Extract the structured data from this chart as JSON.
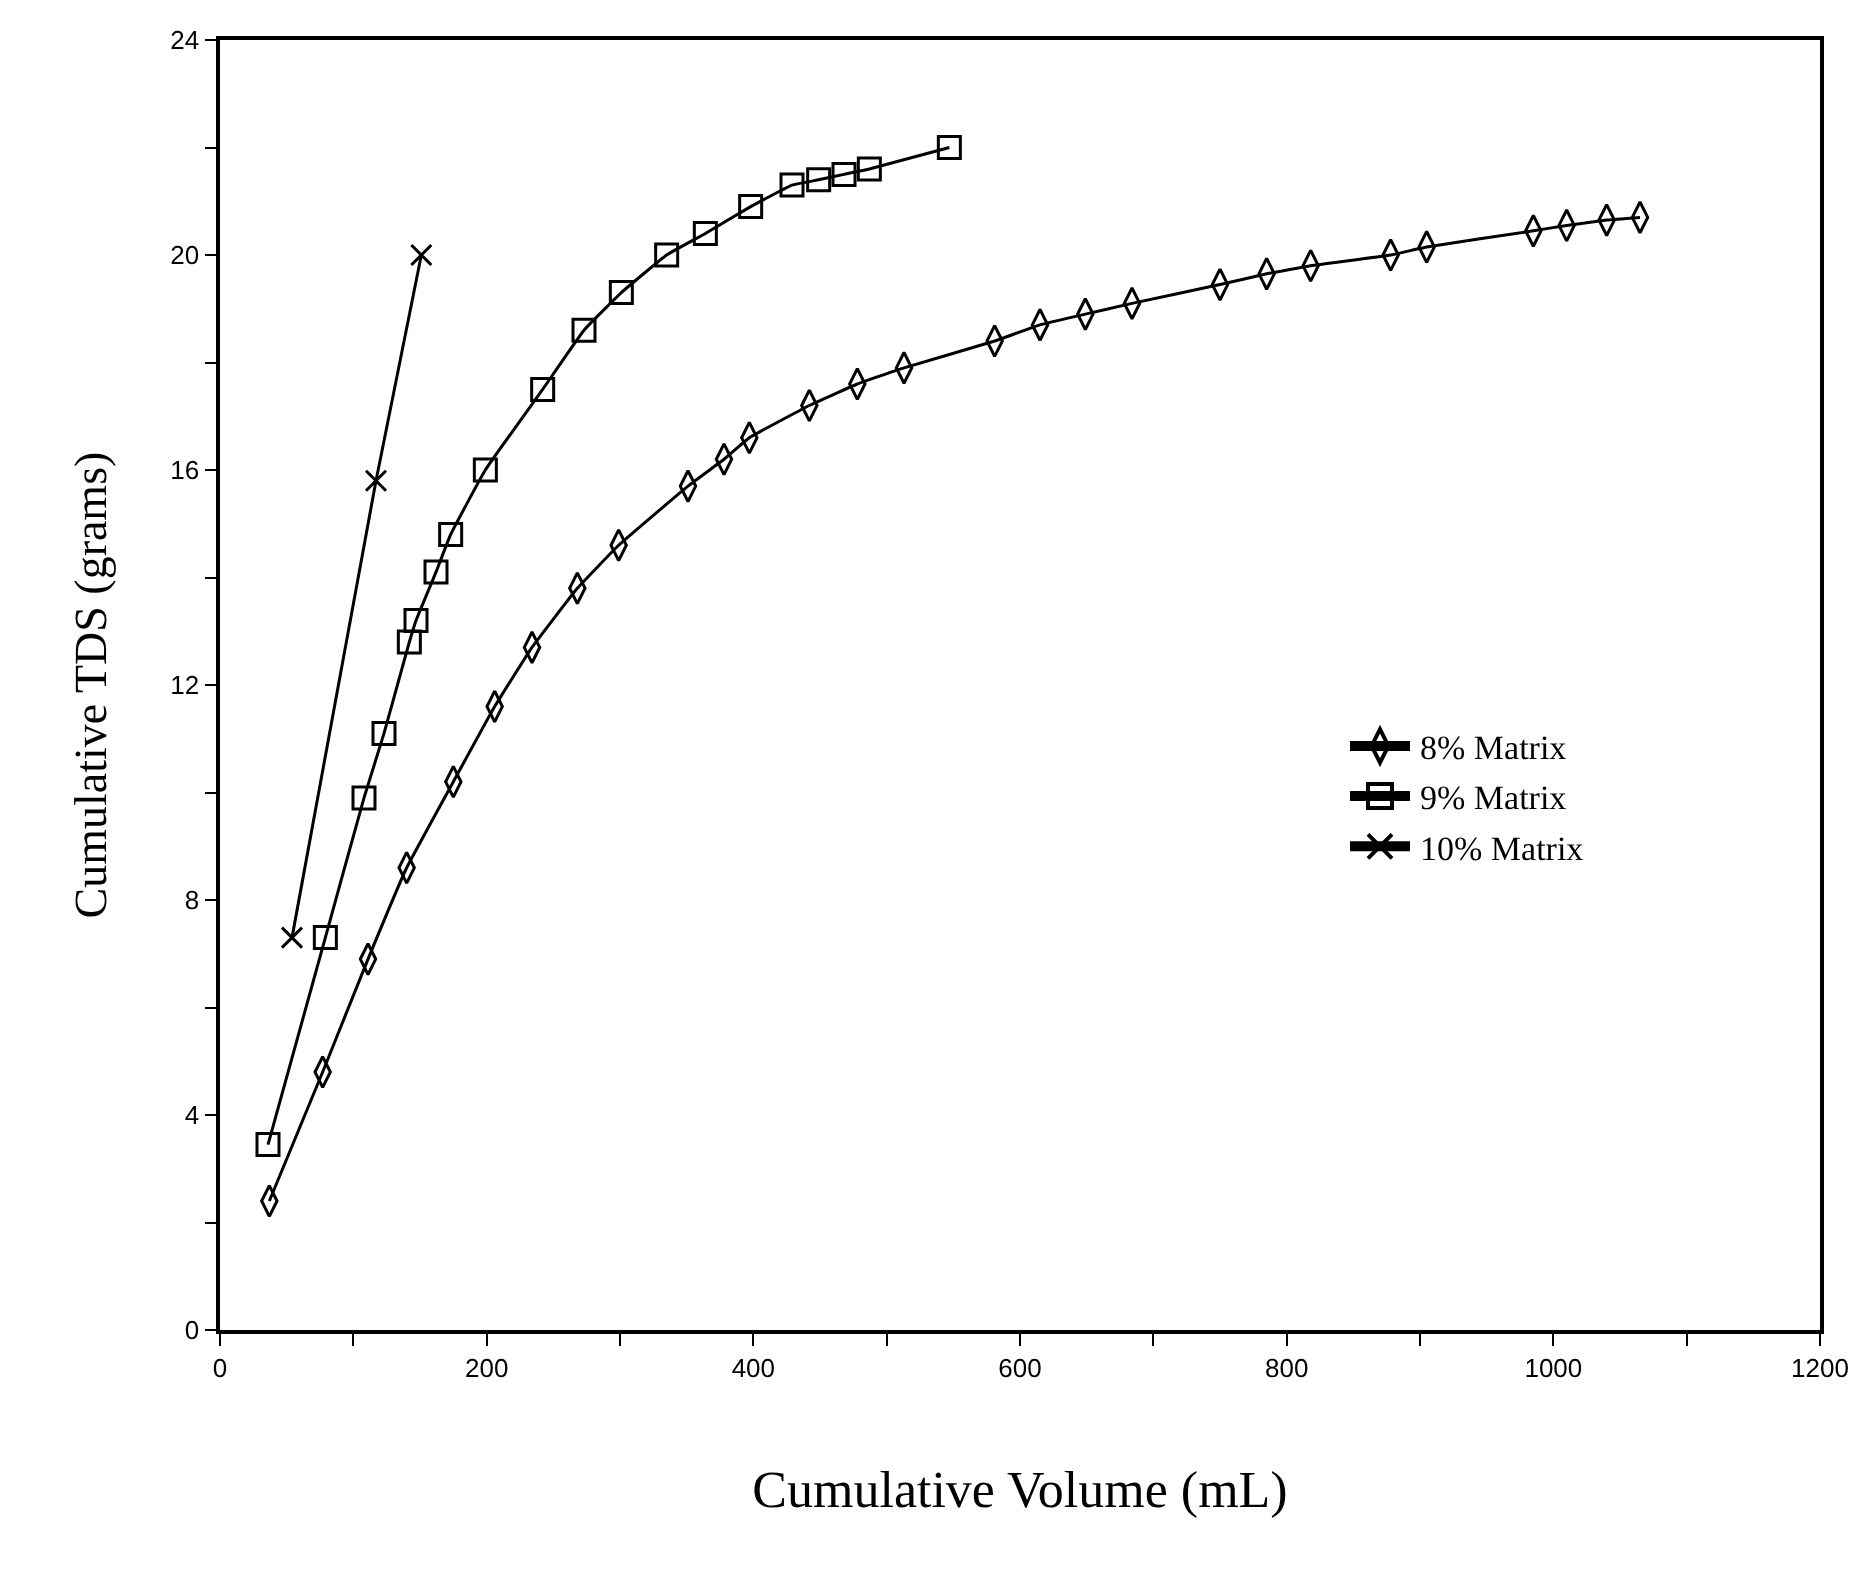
{
  "chart_data": {
    "type": "line",
    "xlabel": "Cumulative Volume (mL)",
    "ylabel": "Cumulative TDS (grams)",
    "xlim": [
      0,
      1200
    ],
    "ylim": [
      0,
      24
    ],
    "xticks": [
      0,
      {
        "value": 100,
        "label": null
      },
      200,
      {
        "value": 300,
        "label": null
      },
      400,
      {
        "value": 500,
        "label": null
      },
      600,
      {
        "value": 700,
        "label": null
      },
      800,
      {
        "value": 900,
        "label": null
      },
      1000,
      {
        "value": 1100,
        "label": null
      },
      1200
    ],
    "yticks": [
      0,
      {
        "value": 2,
        "label": null
      },
      4,
      {
        "value": 6,
        "label": null
      },
      8,
      {
        "value": 10,
        "label": null
      },
      12,
      {
        "value": 14,
        "label": null
      },
      16,
      {
        "value": 18,
        "label": null
      },
      20,
      {
        "value": 22,
        "label": null
      },
      24
    ],
    "legend": "bottom right",
    "line_style": "solid",
    "series": [
      {
        "name": "8% Matrix",
        "color": "#000000",
        "marker": "diamond",
        "x": [
          37,
          77,
          111,
          140,
          175,
          206,
          234,
          268,
          299,
          351,
          378,
          397,
          442,
          478,
          513,
          581,
          615,
          649,
          684,
          750,
          785,
          818,
          878,
          905,
          985,
          1010,
          1040,
          1065
        ],
        "values": [
          2.4,
          4.8,
          6.9,
          8.6,
          10.2,
          11.6,
          12.7,
          13.8,
          14.6,
          15.7,
          16.2,
          16.6,
          17.2,
          17.6,
          17.9,
          18.4,
          18.7,
          18.9,
          19.1,
          19.45,
          19.65,
          19.8,
          20.0,
          20.15,
          20.45,
          20.55,
          20.65,
          20.7
        ]
      },
      {
        "name": "9% Matrix",
        "color": "#000000",
        "marker": "square",
        "x": [
          36,
          79,
          108,
          123,
          142,
          147,
          162,
          173,
          199,
          242,
          273,
          301,
          335,
          364,
          398,
          429,
          449,
          468,
          487,
          547
        ],
        "values": [
          3.45,
          7.3,
          9.9,
          11.1,
          12.8,
          13.2,
          14.1,
          14.8,
          16.0,
          17.5,
          18.6,
          19.3,
          20.0,
          20.4,
          20.9,
          21.3,
          21.4,
          21.5,
          21.6,
          22.0
        ]
      },
      {
        "name": "10% Matrix",
        "color": "#000000",
        "marker": "cross",
        "x": [
          54,
          117,
          151
        ],
        "values": [
          7.3,
          15.8,
          20.0
        ]
      }
    ]
  }
}
